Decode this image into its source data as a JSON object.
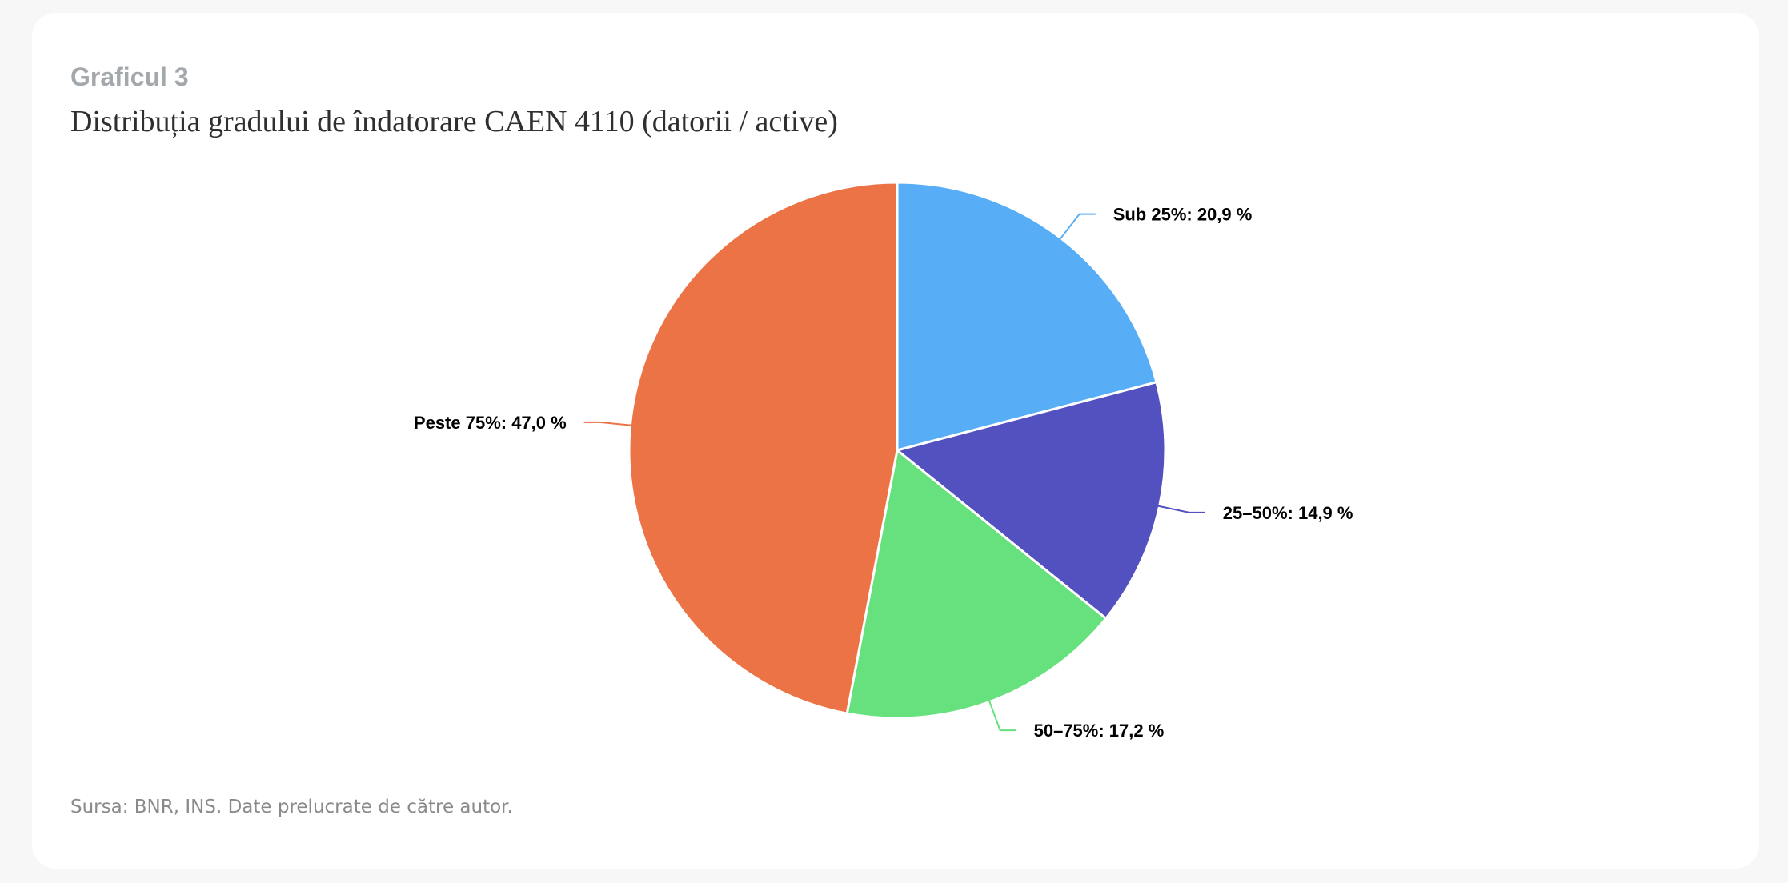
{
  "header": {
    "kicker": "Graficul 3",
    "title": "Distribuția gradului de îndatorare CAEN 4110 (datorii / active)"
  },
  "footer": {
    "source": "Sursa: BNR, INS. Date prelucrate de către autor."
  },
  "chart_data": {
    "type": "pie",
    "title": "Distribuția gradului de îndatorare CAEN 4110 (datorii / active)",
    "unit": "%",
    "slices": [
      {
        "label": "Sub 25%",
        "value": 20.9,
        "display": "Sub 25%: 20,9 %",
        "color": "#57aef7"
      },
      {
        "label": "25–50%",
        "value": 14.9,
        "display": "25–50%: 14,9 %",
        "color": "#5350c0"
      },
      {
        "label": "50–75%",
        "value": 17.2,
        "display": "50–75%: 17,2 %",
        "color": "#67e07e"
      },
      {
        "label": "Peste 75%",
        "value": 47.0,
        "display": "Peste 75%: 47,0 %",
        "color": "#ec7346"
      }
    ]
  }
}
